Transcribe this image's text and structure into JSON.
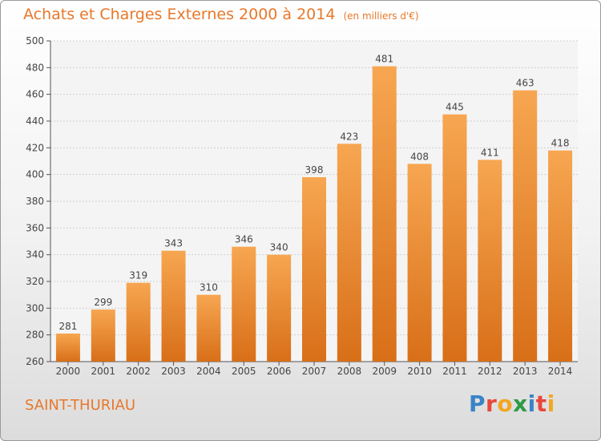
{
  "title": "Achats et Charges Externes 2000 à 2014",
  "unit": "(en milliers d'€)",
  "city": "SAINT-THURIAU",
  "logo": {
    "letters": [
      "P",
      "r",
      "o",
      "x",
      "i",
      "t",
      "i"
    ],
    "colors": [
      "#3a84c6",
      "#e8473b",
      "#f2a623",
      "#2f9a46",
      "#3a84c6",
      "#e8473b",
      "#f2a623"
    ]
  },
  "colors": {
    "accent": "#e8782a",
    "bar_top": "#f7a651",
    "bar_bottom": "#d86f18",
    "grid": "#d0d0d0"
  },
  "chart_data": {
    "type": "bar",
    "title": "Achats et Charges Externes 2000 à 2014",
    "categories": [
      "2000",
      "2001",
      "2002",
      "2003",
      "2004",
      "2005",
      "2006",
      "2007",
      "2008",
      "2009",
      "2010",
      "2011",
      "2012",
      "2013",
      "2014"
    ],
    "values": [
      281,
      299,
      319,
      343,
      310,
      346,
      340,
      398,
      423,
      481,
      408,
      445,
      411,
      463,
      418
    ],
    "ylim": [
      260,
      500
    ],
    "yticks": [
      260,
      280,
      300,
      320,
      340,
      360,
      380,
      400,
      420,
      440,
      460,
      480,
      500
    ],
    "grid": true
  }
}
